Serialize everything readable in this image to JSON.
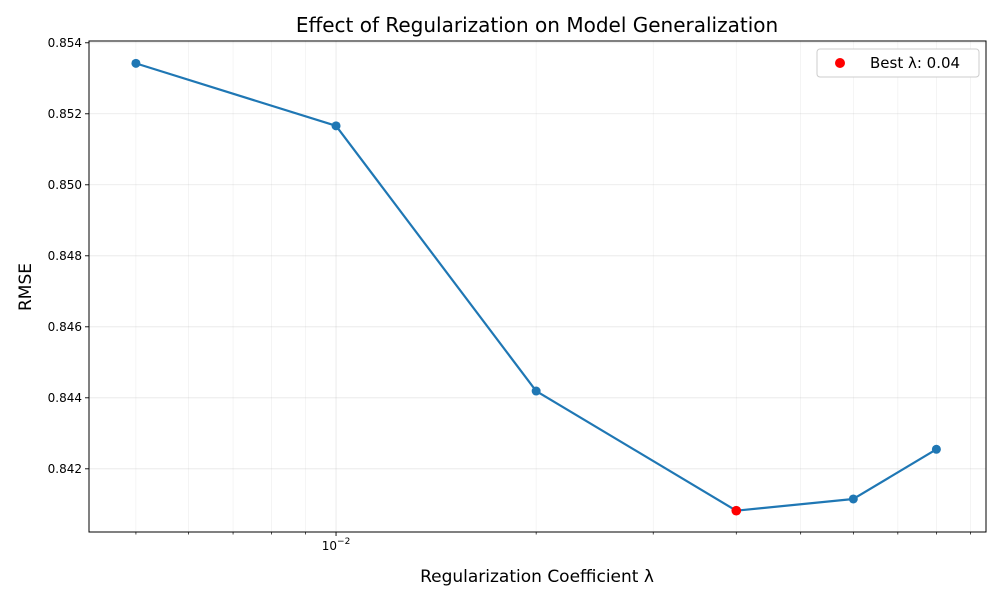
{
  "chart_data": {
    "type": "line",
    "title": "Effect of Regularization on Model Generalization",
    "xlabel": "Regularization Coefficient λ",
    "ylabel": "RMSE",
    "x_scale": "log",
    "xlim": [
      0.00425,
      0.095
    ],
    "ylim": [
      0.84022,
      0.85405
    ],
    "x_major_ticks": [
      {
        "value": 0.01,
        "base": "10",
        "exponent": "−2"
      }
    ],
    "y_ticks": [
      {
        "value": 0.842,
        "label": "0.842"
      },
      {
        "value": 0.844,
        "label": "0.844"
      },
      {
        "value": 0.846,
        "label": "0.846"
      },
      {
        "value": 0.848,
        "label": "0.848"
      },
      {
        "value": 0.85,
        "label": "0.850"
      },
      {
        "value": 0.852,
        "label": "0.852"
      },
      {
        "value": 0.854,
        "label": "0.854"
      }
    ],
    "grid": true,
    "series": [
      {
        "color": "#1f77b4",
        "points": [
          {
            "x": 0.005,
            "y": 0.85342
          },
          {
            "x": 0.01,
            "y": 0.85166
          },
          {
            "x": 0.02,
            "y": 0.84419
          },
          {
            "x": 0.04,
            "y": 0.84082
          },
          {
            "x": 0.06,
            "y": 0.84115
          },
          {
            "x": 0.08,
            "y": 0.84255
          }
        ]
      }
    ],
    "best_point": {
      "x": 0.04,
      "y": 0.84082,
      "color": "#ff0000"
    },
    "legend": {
      "placement": "top-right",
      "entries": [
        {
          "label": "Best λ: 0.04",
          "color": "#ff0000",
          "marker": "dot"
        }
      ]
    }
  }
}
